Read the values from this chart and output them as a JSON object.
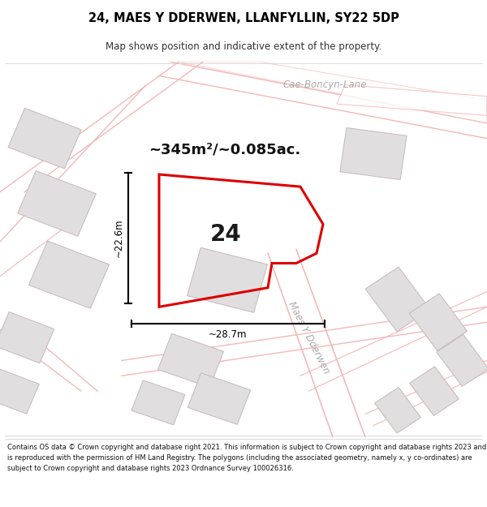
{
  "title": "24, MAES Y DDERWEN, LLANFYLLIN, SY22 5DP",
  "subtitle": "Map shows position and indicative extent of the property.",
  "area_text": "~345m²/~0.085ac.",
  "width_label": "~28.7m",
  "height_label": "~22.6m",
  "plot_number": "24",
  "footer_text": "Contains OS data © Crown copyright and database right 2021. This information is subject to Crown copyright and database rights 2023 and is reproduced with the permission of HM Land Registry. The polygons (including the associated geometry, namely x, y co-ordinates) are subject to Crown copyright and database rights 2023 Ordnance Survey 100026316.",
  "map_bg": "#faf8f8",
  "road_color": "#f4b8b8",
  "plot_outline_color": "#dd0000",
  "building_fill": "#e0dede",
  "building_outline": "#c8b8b8",
  "title_color": "#000000",
  "text_color": "#222222",
  "road_label_color": "#aaaaaa",
  "dim_color": "#111111",
  "cae_boncyn_label": "Cae-Boncyn-Lane",
  "maes_y_dderwen_label": "Maes Y Dderwen"
}
